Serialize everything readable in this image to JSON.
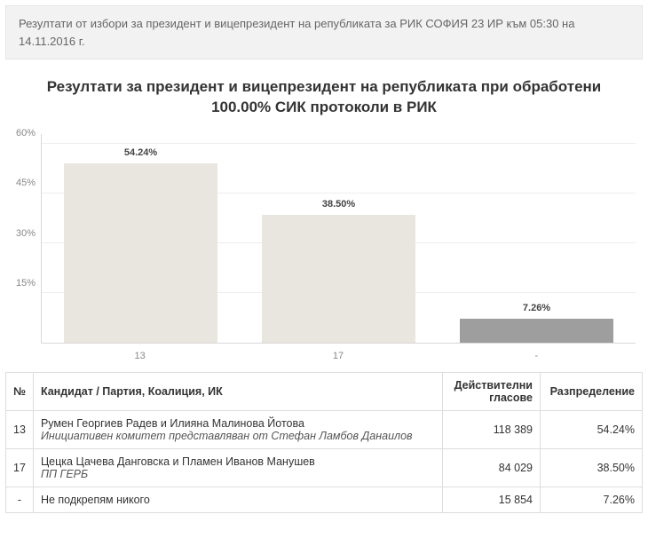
{
  "header": {
    "text": "Резултати от избори за президент и вицепрезидент на републиката за РИК СОФИЯ 23 ИР към 05:30 на 14.11.2016 г."
  },
  "chart": {
    "type": "bar",
    "title": "Резултати за президент и вицепрезидент на републиката при обработени 100.00% СИК протоколи в РИК",
    "background_color": "#ffffff",
    "grid_color": "#eeeeee",
    "axis_color": "#d8d8d8",
    "ylim_max": 63,
    "y_ticks": [
      {
        "value": 15,
        "label": "15%"
      },
      {
        "value": 30,
        "label": "30%"
      },
      {
        "value": 45,
        "label": "45%"
      },
      {
        "value": 60,
        "label": "60%"
      }
    ],
    "bars": [
      {
        "x_label": "13",
        "value": 54.24,
        "value_label": "54.24%",
        "color": "#e9e5df"
      },
      {
        "x_label": "17",
        "value": 38.5,
        "value_label": "38.50%",
        "color": "#e9e5df"
      },
      {
        "x_label": "-",
        "value": 7.26,
        "value_label": "7.26%",
        "color": "#9e9e9e"
      }
    ],
    "label_fontsize": 11,
    "bar_width_ratio": 0.78
  },
  "table": {
    "columns": {
      "num": "№",
      "candidate": "Кандидат / Партия, Коалиция, ИК",
      "votes": "Действителни гласове",
      "distribution": "Разпределение"
    },
    "rows": [
      {
        "num": "13",
        "candidate_main": "Румен Георгиев Радев и Илияна Малинова Йотова",
        "candidate_sub": "Инициативен комитет представляван от Стефан Ламбов Данаилов",
        "votes": "118 389",
        "distribution": "54.24%"
      },
      {
        "num": "17",
        "candidate_main": "Цецка Цачева Данговска и Пламен Иванов Манушев",
        "candidate_sub": "ПП ГЕРБ",
        "votes": "84 029",
        "distribution": "38.50%"
      },
      {
        "num": "-",
        "candidate_main": "Не подкрепям никого",
        "candidate_sub": "",
        "votes": "15 854",
        "distribution": "7.26%"
      }
    ]
  }
}
